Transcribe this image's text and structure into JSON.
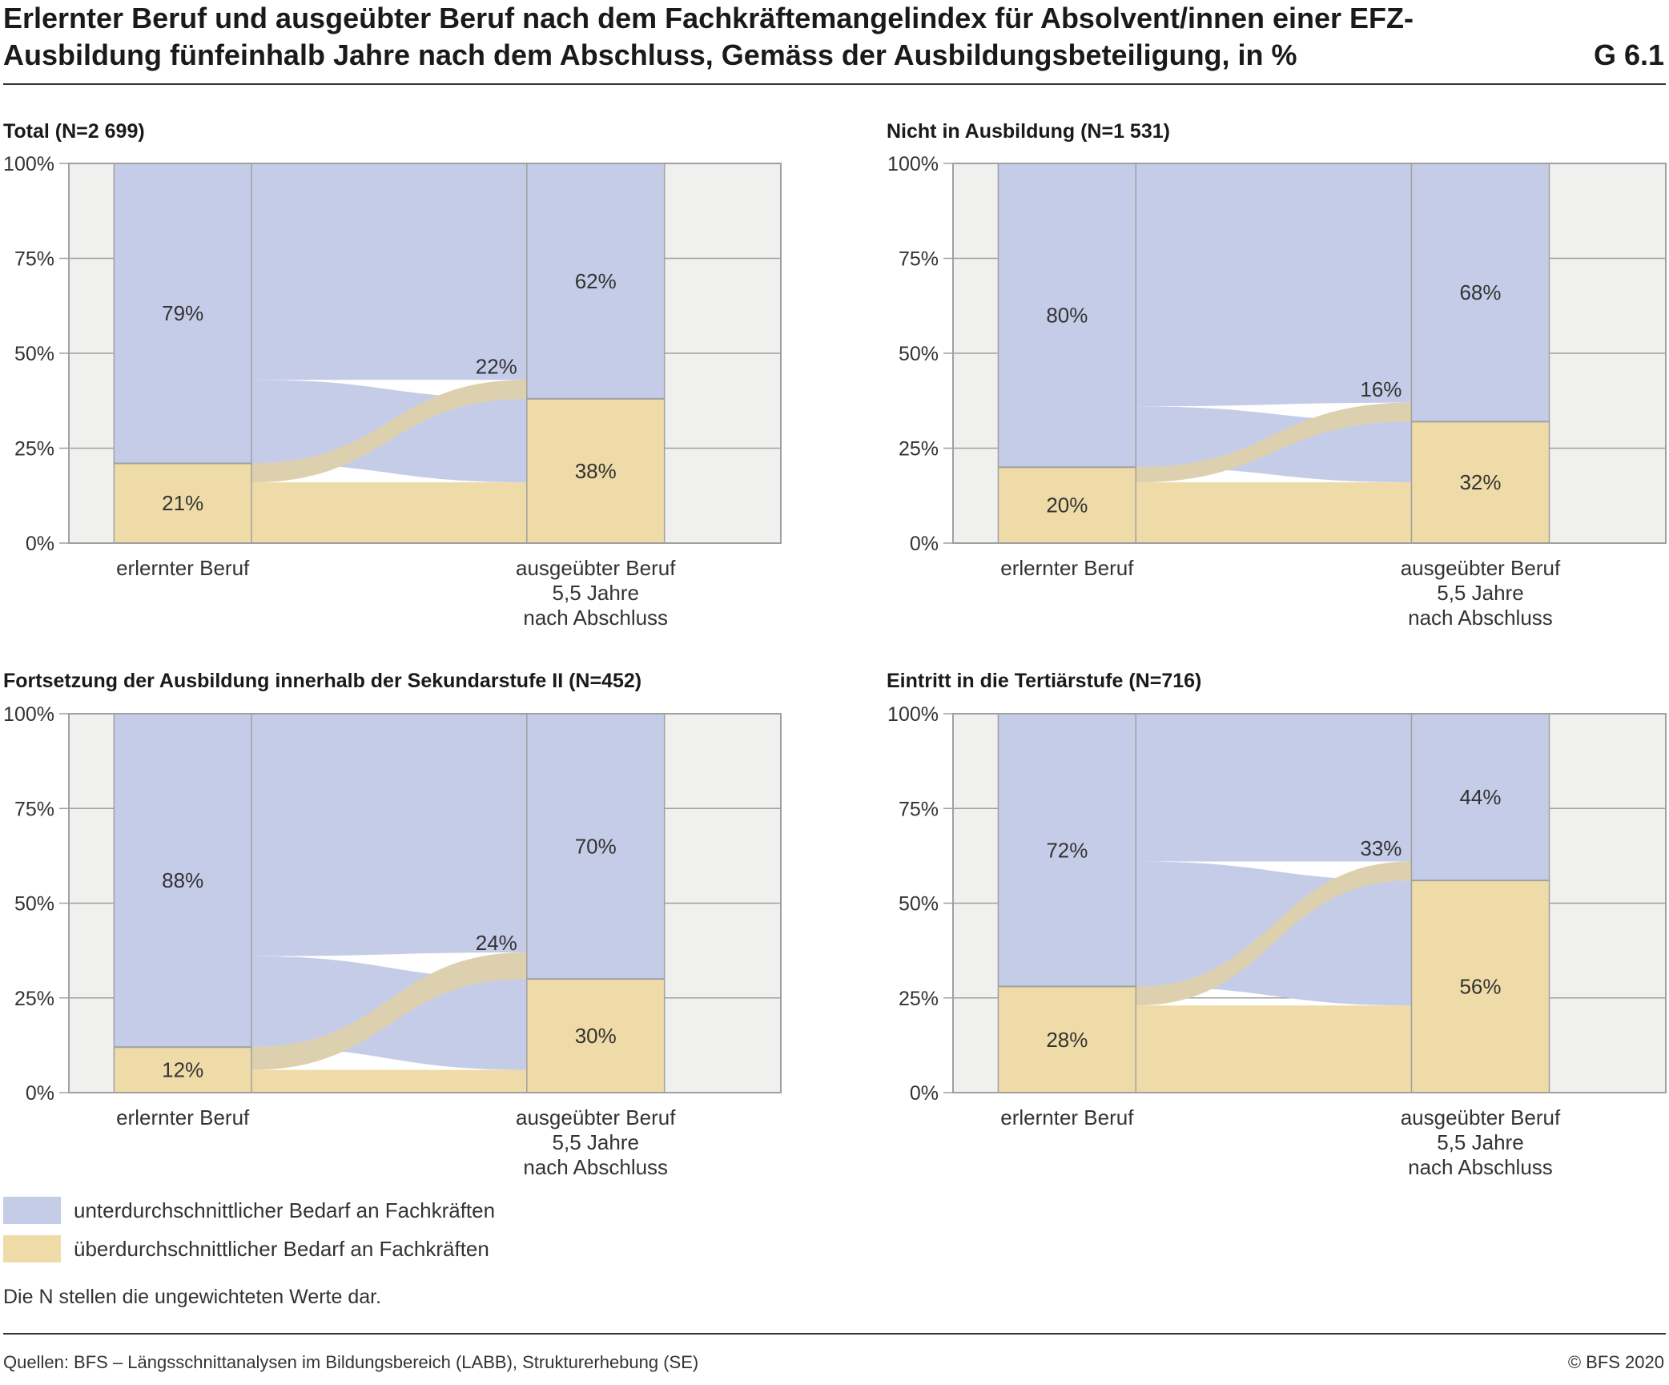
{
  "title": "Erlernter Beruf und ausgeübter Beruf nach dem Fachkräftemangelindex für Absolvent/innen einer EFZ-Ausbildung fünfeinhalb Jahre nach dem Abschluss, Gemäss der Ausbildungsbeteiligung, in %",
  "figure_code": "G 6.1",
  "colors": {
    "below": "#c5cce8",
    "above": "#efdba7",
    "backdrop": "#f0f0ef",
    "border": "#a0a0a0",
    "flow_cross": "#bdbdbd"
  },
  "legend": [
    {
      "label": "unterdurchschnittlicher Bedarf an Fachkräften",
      "color": "#c5cce8"
    },
    {
      "label": "überdurchschnittlicher Bedarf an Fachkräften",
      "color": "#efdba7"
    }
  ],
  "note": "Die N stellen die ungewichteten Werte dar.",
  "source": "Quellen: BFS – Längsschnittanalysen im Bildungsbereich (LABB), Strukturerhebung (SE)",
  "copyright": "© BFS 2020",
  "chart_data": [
    {
      "type": "bar",
      "title": "Total (N=2 699)",
      "categories": [
        "erlernter Beruf",
        "ausgeübter Beruf\n5,5 Jahre\nnach Abschluss"
      ],
      "y_ticks": [
        "0%",
        "25%",
        "50%",
        "75%",
        "100%"
      ],
      "ylim": [
        0,
        100
      ],
      "series": [
        {
          "name": "unterdurchschnittlicher Bedarf an Fachkräften",
          "values": [
            79,
            62
          ]
        },
        {
          "name": "überdurchschnittlicher Bedarf an Fachkräften",
          "values": [
            21,
            38
          ]
        }
      ],
      "flows": {
        "below_to_below": 57,
        "below_to_above": 22,
        "above_to_below": 5,
        "above_to_above": 16
      },
      "labels": {
        "start_below": "79%",
        "start_above": "21%",
        "end_below": "62%",
        "end_above": "38%",
        "switch": "22%"
      }
    },
    {
      "type": "bar",
      "title": "Nicht in Ausbildung (N=1 531)",
      "categories": [
        "erlernter Beruf",
        "ausgeübter Beruf\n5,5 Jahre\nnach Abschluss"
      ],
      "y_ticks": [
        "0%",
        "25%",
        "50%",
        "75%",
        "100%"
      ],
      "ylim": [
        0,
        100
      ],
      "series": [
        {
          "name": "unterdurchschnittlicher Bedarf an Fachkräften",
          "values": [
            80,
            68
          ]
        },
        {
          "name": "überdurchschnittlicher Bedarf an Fachkräften",
          "values": [
            20,
            32
          ]
        }
      ],
      "flows": {
        "below_to_below": 63,
        "below_to_above": 16,
        "above_to_below": 5,
        "above_to_above": 16
      },
      "labels": {
        "start_below": "80%",
        "start_above": "20%",
        "end_below": "68%",
        "end_above": "32%",
        "switch": "16%"
      }
    },
    {
      "type": "bar",
      "title": "Fortsetzung der Ausbildung innerhalb der Sekundarstufe II (N=452)",
      "categories": [
        "erlernter Beruf",
        "ausgeübter Beruf\n5,5 Jahre\nnach Abschluss"
      ],
      "y_ticks": [
        "0%",
        "25%",
        "50%",
        "75%",
        "100%"
      ],
      "ylim": [
        0,
        100
      ],
      "series": [
        {
          "name": "unterdurchschnittlicher Bedarf an Fachkräften",
          "values": [
            88,
            70
          ]
        },
        {
          "name": "überdurchschnittlicher Bedarf an Fachkräften",
          "values": [
            12,
            30
          ]
        }
      ],
      "flows": {
        "below_to_below": 63,
        "below_to_above": 24,
        "above_to_below": 7,
        "above_to_above": 6
      },
      "labels": {
        "start_below": "88%",
        "start_above": "12%",
        "end_below": "70%",
        "end_above": "30%",
        "switch": "24%"
      }
    },
    {
      "type": "bar",
      "title": "Eintritt in die Tertiärstufe (N=716)",
      "categories": [
        "erlernter Beruf",
        "ausgeübter Beruf\n5,5 Jahre\nnach Abschluss"
      ],
      "y_ticks": [
        "0%",
        "25%",
        "50%",
        "75%",
        "100%"
      ],
      "ylim": [
        0,
        100
      ],
      "series": [
        {
          "name": "unterdurchschnittlicher Bedarf an Fachkräften",
          "values": [
            72,
            44
          ]
        },
        {
          "name": "überdurchschnittlicher Bedarf an Fachkräften",
          "values": [
            28,
            56
          ]
        }
      ],
      "flows": {
        "below_to_below": 39,
        "below_to_above": 33,
        "above_to_below": 5,
        "above_to_above": 23
      },
      "labels": {
        "start_below": "72%",
        "start_above": "28%",
        "end_below": "44%",
        "end_above": "56%",
        "switch": "33%"
      }
    }
  ]
}
